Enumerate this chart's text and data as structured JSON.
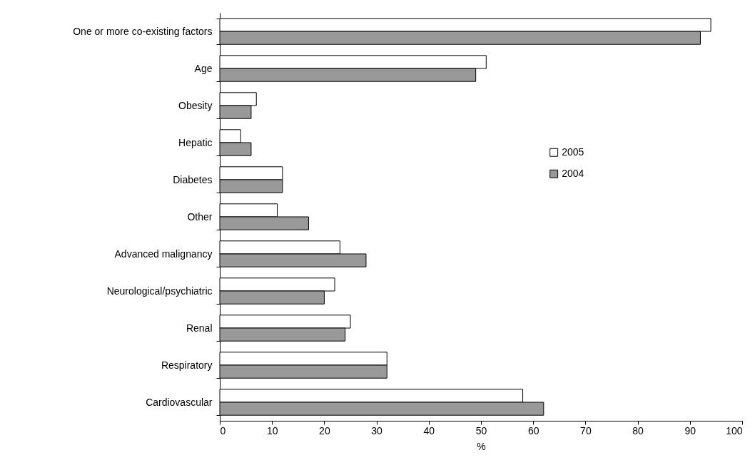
{
  "chart_data": {
    "type": "bar",
    "orientation": "horizontal",
    "xlabel": "%",
    "categories": [
      "One or more co-existing factors",
      "Age",
      "Obesity",
      "Hepatic",
      "Diabetes",
      "Other",
      "Advanced malignancy",
      "Neurological/psychiatric",
      "Renal",
      "Respiratory",
      "Cardiovascular"
    ],
    "series": [
      {
        "name": "2005",
        "color": "#ffffff",
        "values": [
          94,
          51,
          7,
          4,
          12,
          11,
          23,
          22,
          25,
          32,
          58
        ]
      },
      {
        "name": "2004",
        "color": "#999999",
        "values": [
          92,
          49,
          6,
          6,
          12,
          17,
          28,
          20,
          24,
          32,
          62
        ]
      }
    ],
    "xlim": [
      0,
      100
    ],
    "xticks": [
      0,
      10,
      20,
      30,
      40,
      50,
      60,
      70,
      80,
      90,
      100
    ],
    "grid": false,
    "legend": "right"
  }
}
